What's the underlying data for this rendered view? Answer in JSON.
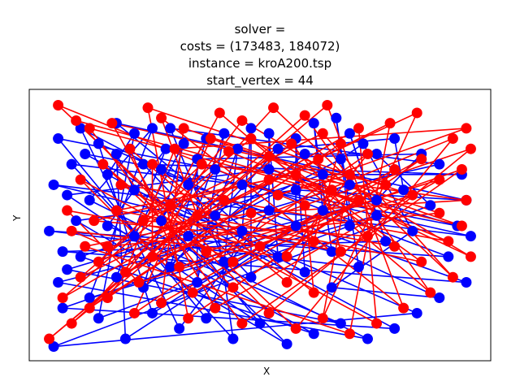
{
  "chart_data": {
    "type": "scatter",
    "title_lines": [
      "solver =",
      "costs = (173483, 184072)",
      "instance = kroA200.tsp",
      "start_vertex = 44"
    ],
    "xlabel": "X",
    "ylabel": "Y",
    "ticks": "none",
    "grid": false,
    "colors": {
      "series_a": "#0000ff",
      "series_b": "#ff0000"
    },
    "description_of_marks": "Two overlaid closed tours over the same 200 city vertices (kroA200). Node numbers are drawn inside red markers at font size ~6 and are largely illegible; coordinates below are approximate normalized data positions within the axes (0..1).",
    "series": [
      {
        "color": "#0000ff",
        "nodes": [
          [
            0.04,
            0.03
          ],
          [
            0.06,
            0.18
          ],
          [
            0.05,
            0.28
          ],
          [
            0.07,
            0.33
          ],
          [
            0.1,
            0.38
          ],
          [
            0.09,
            0.52
          ],
          [
            0.07,
            0.62
          ],
          [
            0.08,
            0.74
          ],
          [
            0.05,
            0.84
          ],
          [
            0.1,
            0.88
          ],
          [
            0.14,
            0.82
          ],
          [
            0.18,
            0.78
          ],
          [
            0.22,
            0.86
          ],
          [
            0.26,
            0.88
          ],
          [
            0.29,
            0.8
          ],
          [
            0.33,
            0.82
          ],
          [
            0.38,
            0.84
          ],
          [
            0.42,
            0.86
          ],
          [
            0.45,
            0.8
          ],
          [
            0.48,
            0.88
          ],
          [
            0.52,
            0.86
          ],
          [
            0.58,
            0.84
          ],
          [
            0.62,
            0.9
          ],
          [
            0.67,
            0.92
          ],
          [
            0.7,
            0.86
          ],
          [
            0.73,
            0.82
          ],
          [
            0.76,
            0.78
          ],
          [
            0.8,
            0.84
          ],
          [
            0.86,
            0.78
          ],
          [
            0.9,
            0.74
          ],
          [
            0.95,
            0.7
          ],
          [
            0.96,
            0.6
          ],
          [
            0.94,
            0.5
          ],
          [
            0.97,
            0.46
          ],
          [
            0.92,
            0.38
          ],
          [
            0.96,
            0.28
          ],
          [
            0.9,
            0.22
          ],
          [
            0.85,
            0.16
          ],
          [
            0.8,
            0.1
          ],
          [
            0.74,
            0.06
          ],
          [
            0.68,
            0.12
          ],
          [
            0.62,
            0.08
          ],
          [
            0.56,
            0.04
          ],
          [
            0.5,
            0.12
          ],
          [
            0.44,
            0.06
          ],
          [
            0.38,
            0.14
          ],
          [
            0.32,
            0.1
          ],
          [
            0.26,
            0.16
          ],
          [
            0.2,
            0.06
          ],
          [
            0.14,
            0.14
          ],
          [
            0.12,
            0.22
          ],
          [
            0.18,
            0.3
          ],
          [
            0.24,
            0.26
          ],
          [
            0.3,
            0.34
          ],
          [
            0.36,
            0.28
          ],
          [
            0.42,
            0.36
          ],
          [
            0.48,
            0.3
          ],
          [
            0.54,
            0.38
          ],
          [
            0.6,
            0.32
          ],
          [
            0.66,
            0.4
          ],
          [
            0.72,
            0.34
          ],
          [
            0.78,
            0.44
          ],
          [
            0.84,
            0.48
          ],
          [
            0.88,
            0.58
          ],
          [
            0.82,
            0.64
          ],
          [
            0.76,
            0.6
          ],
          [
            0.7,
            0.66
          ],
          [
            0.64,
            0.7
          ],
          [
            0.58,
            0.64
          ],
          [
            0.52,
            0.72
          ],
          [
            0.46,
            0.66
          ],
          [
            0.4,
            0.72
          ],
          [
            0.34,
            0.66
          ],
          [
            0.28,
            0.72
          ],
          [
            0.22,
            0.64
          ],
          [
            0.16,
            0.7
          ],
          [
            0.12,
            0.6
          ],
          [
            0.16,
            0.5
          ],
          [
            0.22,
            0.46
          ],
          [
            0.28,
            0.52
          ],
          [
            0.34,
            0.46
          ],
          [
            0.4,
            0.54
          ],
          [
            0.46,
            0.48
          ],
          [
            0.52,
            0.56
          ],
          [
            0.58,
            0.5
          ],
          [
            0.64,
            0.56
          ],
          [
            0.7,
            0.5
          ],
          [
            0.76,
            0.54
          ],
          [
            0.68,
            0.76
          ],
          [
            0.6,
            0.78
          ],
          [
            0.54,
            0.8
          ],
          [
            0.36,
            0.76
          ],
          [
            0.3,
            0.88
          ],
          [
            0.24,
            0.74
          ],
          [
            0.18,
            0.9
          ],
          [
            0.11,
            0.78
          ],
          [
            0.04,
            0.66
          ],
          [
            0.03,
            0.48
          ],
          [
            0.06,
            0.4
          ],
          [
            0.66,
            0.26
          ]
        ]
      },
      {
        "color": "#ff0000",
        "nodes": [
          [
            0.05,
            0.97
          ],
          [
            0.09,
            0.91
          ],
          [
            0.12,
            0.88
          ],
          [
            0.17,
            0.9
          ],
          [
            0.25,
            0.96
          ],
          [
            0.33,
            0.88
          ],
          [
            0.39,
            0.84
          ],
          [
            0.46,
            0.91
          ],
          [
            0.53,
            0.96
          ],
          [
            0.6,
            0.93
          ],
          [
            0.65,
            0.97
          ],
          [
            0.72,
            0.88
          ],
          [
            0.79,
            0.9
          ],
          [
            0.85,
            0.94
          ],
          [
            0.93,
            0.84
          ],
          [
            0.97,
            0.8
          ],
          [
            0.95,
            0.72
          ],
          [
            0.9,
            0.68
          ],
          [
            0.86,
            0.76
          ],
          [
            0.8,
            0.72
          ],
          [
            0.74,
            0.78
          ],
          [
            0.68,
            0.82
          ],
          [
            0.63,
            0.76
          ],
          [
            0.57,
            0.82
          ],
          [
            0.52,
            0.77
          ],
          [
            0.48,
            0.84
          ],
          [
            0.43,
            0.79
          ],
          [
            0.37,
            0.74
          ],
          [
            0.31,
            0.8
          ],
          [
            0.26,
            0.74
          ],
          [
            0.21,
            0.8
          ],
          [
            0.15,
            0.74
          ],
          [
            0.1,
            0.68
          ],
          [
            0.07,
            0.56
          ],
          [
            0.08,
            0.48
          ],
          [
            0.13,
            0.52
          ],
          [
            0.18,
            0.56
          ],
          [
            0.24,
            0.52
          ],
          [
            0.3,
            0.58
          ],
          [
            0.36,
            0.54
          ],
          [
            0.42,
            0.6
          ],
          [
            0.48,
            0.55
          ],
          [
            0.54,
            0.62
          ],
          [
            0.6,
            0.58
          ],
          [
            0.66,
            0.64
          ],
          [
            0.72,
            0.6
          ],
          [
            0.78,
            0.66
          ],
          [
            0.84,
            0.62
          ],
          [
            0.9,
            0.55
          ],
          [
            0.95,
            0.5
          ],
          [
            0.97,
            0.38
          ],
          [
            0.93,
            0.3
          ],
          [
            0.88,
            0.24
          ],
          [
            0.82,
            0.18
          ],
          [
            0.76,
            0.12
          ],
          [
            0.7,
            0.08
          ],
          [
            0.64,
            0.14
          ],
          [
            0.58,
            0.1
          ],
          [
            0.52,
            0.16
          ],
          [
            0.46,
            0.12
          ],
          [
            0.4,
            0.18
          ],
          [
            0.34,
            0.14
          ],
          [
            0.28,
            0.2
          ],
          [
            0.22,
            0.16
          ],
          [
            0.16,
            0.22
          ],
          [
            0.12,
            0.18
          ],
          [
            0.08,
            0.12
          ],
          [
            0.03,
            0.06
          ],
          [
            0.06,
            0.22
          ],
          [
            0.1,
            0.3
          ],
          [
            0.14,
            0.36
          ],
          [
            0.2,
            0.32
          ],
          [
            0.26,
            0.38
          ],
          [
            0.32,
            0.34
          ],
          [
            0.38,
            0.4
          ],
          [
            0.44,
            0.36
          ],
          [
            0.5,
            0.42
          ],
          [
            0.56,
            0.38
          ],
          [
            0.62,
            0.44
          ],
          [
            0.68,
            0.4
          ],
          [
            0.74,
            0.46
          ],
          [
            0.8,
            0.42
          ],
          [
            0.86,
            0.36
          ],
          [
            0.92,
            0.44
          ],
          [
            0.96,
            0.6
          ],
          [
            0.96,
            0.88
          ],
          [
            0.62,
            0.24
          ],
          [
            0.56,
            0.28
          ],
          [
            0.44,
            0.26
          ],
          [
            0.35,
            0.24
          ],
          [
            0.23,
            0.28
          ],
          [
            0.16,
            0.42
          ],
          [
            0.52,
            0.68
          ],
          [
            0.58,
            0.7
          ],
          [
            0.64,
            0.86
          ],
          [
            0.41,
            0.94
          ],
          [
            0.28,
            0.92
          ],
          [
            0.19,
            0.66
          ],
          [
            0.11,
            0.42
          ],
          [
            0.7,
            0.7
          ]
        ]
      }
    ]
  }
}
